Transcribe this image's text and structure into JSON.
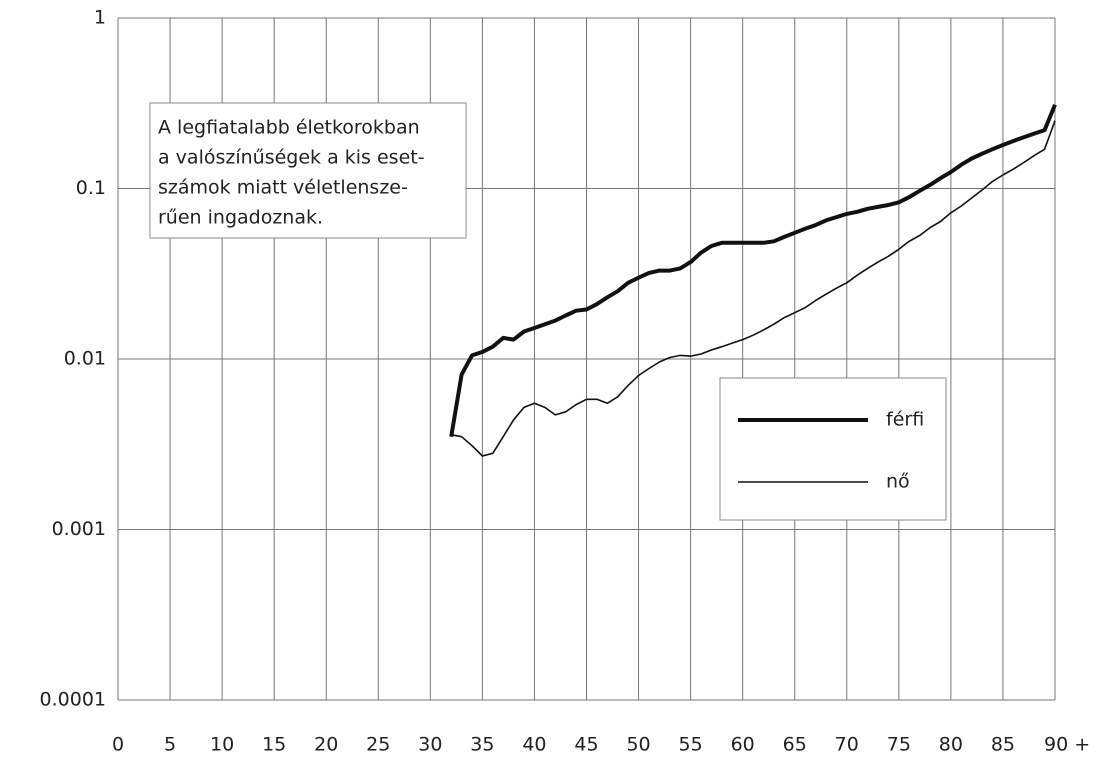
{
  "chart_data": {
    "type": "line",
    "annotation": [
      "A legfiatalabb életkorokban",
      "a valószínűségek a kis eset-",
      "számok miatt véletlensze-",
      "rűen ingadoznak."
    ],
    "x": [
      32,
      33,
      34,
      35,
      36,
      37,
      38,
      39,
      40,
      41,
      42,
      43,
      44,
      45,
      46,
      47,
      48,
      49,
      50,
      51,
      52,
      53,
      54,
      55,
      56,
      57,
      58,
      59,
      60,
      61,
      62,
      63,
      64,
      65,
      66,
      67,
      68,
      69,
      70,
      71,
      72,
      73,
      74,
      75,
      76,
      77,
      78,
      79,
      80,
      81,
      82,
      83,
      84,
      85,
      86,
      87,
      88,
      89,
      90
    ],
    "series": [
      {
        "name": "férfi",
        "color": "#111111",
        "width": 4,
        "values": [
          0.0035,
          0.0081,
          0.0105,
          0.011,
          0.0118,
          0.0133,
          0.013,
          0.0145,
          0.0152,
          0.016,
          0.0168,
          0.018,
          0.0192,
          0.0195,
          0.021,
          0.023,
          0.025,
          0.028,
          0.03,
          0.032,
          0.033,
          0.033,
          0.034,
          0.037,
          0.042,
          0.046,
          0.048,
          0.048,
          0.048,
          0.048,
          0.048,
          0.049,
          0.052,
          0.055,
          0.058,
          0.061,
          0.065,
          0.068,
          0.071,
          0.073,
          0.076,
          0.078,
          0.08,
          0.083,
          0.089,
          0.097,
          0.105,
          0.115,
          0.125,
          0.138,
          0.15,
          0.16,
          0.17,
          0.18,
          0.19,
          0.2,
          0.21,
          0.22,
          0.31
        ]
      },
      {
        "name": "nő",
        "color": "#111111",
        "width": 1.6,
        "values": [
          0.0036,
          0.0035,
          0.0031,
          0.0027,
          0.0028,
          0.0035,
          0.0044,
          0.0052,
          0.0055,
          0.0052,
          0.0047,
          0.0049,
          0.0054,
          0.0058,
          0.0058,
          0.0055,
          0.006,
          0.007,
          0.008,
          0.0088,
          0.0096,
          0.0102,
          0.0105,
          0.0104,
          0.0107,
          0.0113,
          0.0118,
          0.0124,
          0.013,
          0.0138,
          0.0148,
          0.016,
          0.0175,
          0.0187,
          0.02,
          0.022,
          0.024,
          0.026,
          0.028,
          0.031,
          0.034,
          0.037,
          0.04,
          0.044,
          0.049,
          0.053,
          0.059,
          0.064,
          0.072,
          0.079,
          0.088,
          0.098,
          0.11,
          0.12,
          0.13,
          0.142,
          0.156,
          0.17,
          0.25
        ]
      }
    ],
    "xlim": [
      0,
      90
    ],
    "xticks": [
      0,
      5,
      10,
      15,
      20,
      25,
      30,
      35,
      40,
      45,
      50,
      55,
      60,
      65,
      70,
      75,
      80,
      85,
      {
        "value": 90,
        "label": "90 +"
      }
    ],
    "ylim": [
      0.0001,
      1
    ],
    "yticks": [
      1,
      0.1,
      0.01,
      0.001,
      0.0001
    ],
    "log_y": true,
    "grid": true
  }
}
